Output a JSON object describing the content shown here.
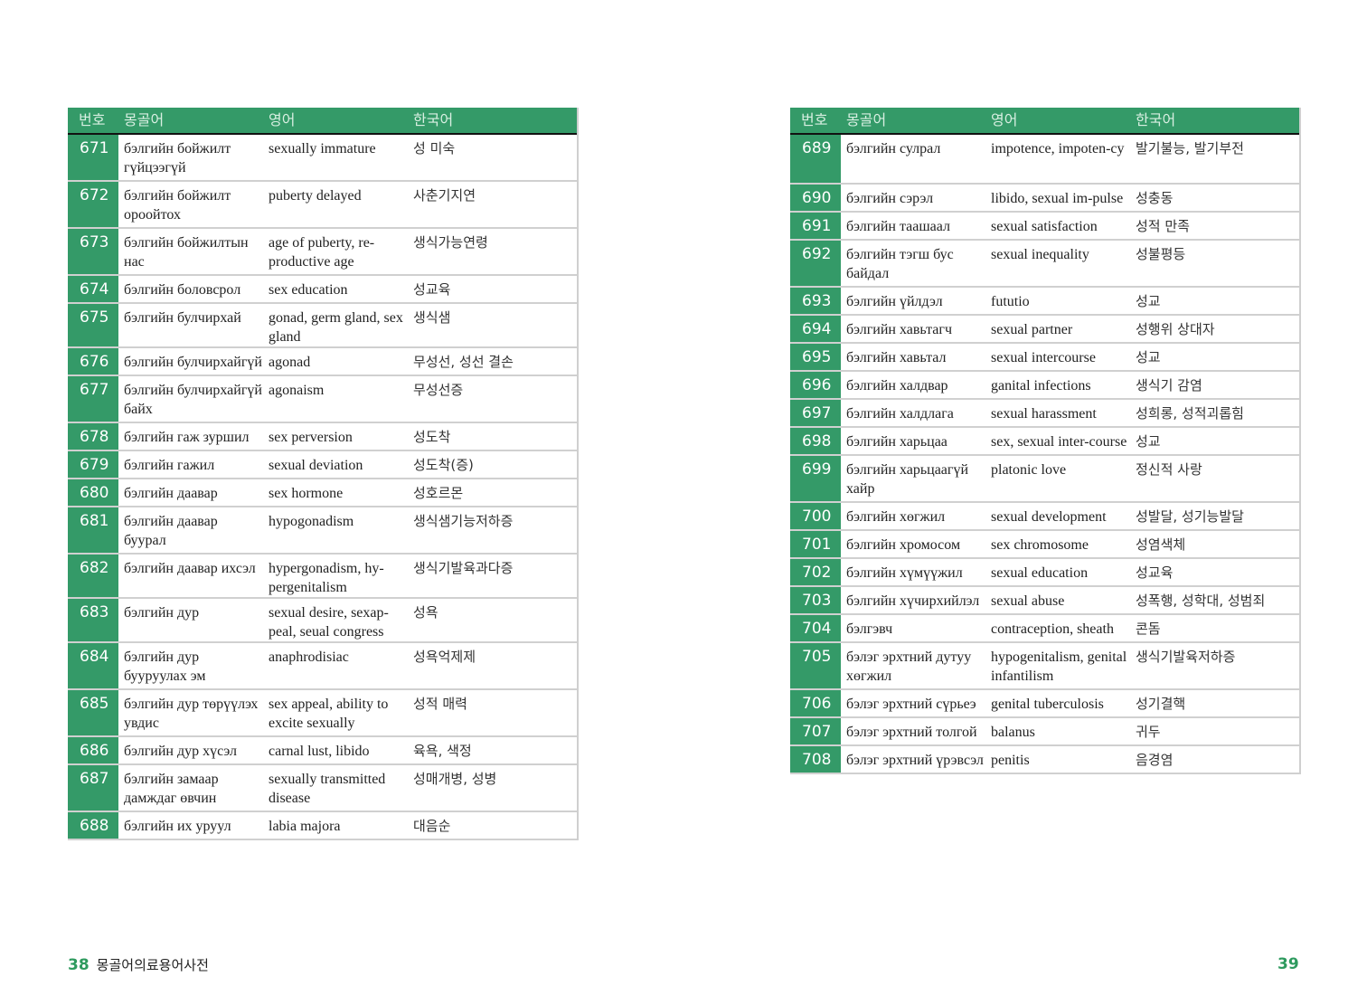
{
  "header": {
    "num": "번호",
    "mongolian": "몽골어",
    "english": "영어",
    "korean": "한국어"
  },
  "colors": {
    "accent": "#349a68",
    "page_number": "#2e9a5e"
  },
  "left_page": {
    "page_number": "38",
    "book_title": "몽골어의료용어사전",
    "rows": [
      {
        "num": "671",
        "mn": "бэлгийн бойжилт гүйцээгүй",
        "en": "sexually immature",
        "ko": "성 미숙"
      },
      {
        "num": "672",
        "mn": "бэлгийн бойжилт ороойтох",
        "en": "puberty delayed",
        "ko": "사춘기지연"
      },
      {
        "num": "673",
        "mn": "бэлгийн бойжилтын нас",
        "en": "age of puberty, re-productive age",
        "ko": "생식가능연령"
      },
      {
        "num": "674",
        "mn": "бэлгийн боловсрол",
        "en": "sex education",
        "ko": "성교육"
      },
      {
        "num": "675",
        "mn": "бэлгийн булчирхай",
        "en": "gonad, germ gland, sex gland",
        "ko": "생식샘"
      },
      {
        "num": "676",
        "mn": "бэлгийн булчирхайгүй",
        "en": "agonad",
        "ko": "무성선, 성선 결손"
      },
      {
        "num": "677",
        "mn": "бэлгийн булчирхайгүй байх",
        "en": "agonaism",
        "ko": "무성선증"
      },
      {
        "num": "678",
        "mn": "бэлгийн гаж зуршил",
        "en": "sex perversion",
        "ko": "성도착"
      },
      {
        "num": "679",
        "mn": "бэлгийн гажил",
        "en": "sexual deviation",
        "ko": "성도착(증)"
      },
      {
        "num": "680",
        "mn": "бэлгийн даавар",
        "en": "sex hormone",
        "ko": "성호르몬"
      },
      {
        "num": "681",
        "mn": "бэлгийн даавар буурал",
        "en": "hypogonadism",
        "ko": "생식샘기능저하증"
      },
      {
        "num": "682",
        "mn": "бэлгийн даавар ихсэл",
        "en": "hypergonadism, hy-pergenitalism",
        "ko": "생식기발육과다증"
      },
      {
        "num": "683",
        "mn": "бэлгийн дур",
        "en": "sexual desire, sexap-peal, seual congress",
        "ko": "성욕"
      },
      {
        "num": "684",
        "mn": "бэлгийн дур бууруулах эм",
        "en": "anaphrodisiac",
        "ko": "성욕억제제"
      },
      {
        "num": "685",
        "mn": "бэлгийн дур төрүүлэх увдис",
        "en": "sex appeal, ability to excite sexually",
        "ko": "성적 매력"
      },
      {
        "num": "686",
        "mn": "бэлгийн дур хүсэл",
        "en": "carnal lust, libido",
        "ko": "육욕, 색정"
      },
      {
        "num": "687",
        "mn": "бэлгийн замаар дамждаг өвчин",
        "en": "sexually transmitted disease",
        "ko": "성매개병, 성병"
      },
      {
        "num": "688",
        "mn": "бэлгийн их уруул",
        "en": "labia majora",
        "ko": "대음순"
      }
    ]
  },
  "right_page": {
    "page_number": "39",
    "rows": [
      {
        "num": "689",
        "mn": "бэлгийн сулрал",
        "en": "impotence, impoten-cy",
        "ko": "발기불능, 발기부전"
      },
      {
        "num": "690",
        "mn": "бэлгийн сэрэл",
        "en": "libido, sexual im-pulse",
        "ko": "성충동"
      },
      {
        "num": "691",
        "mn": "бэлгийн таашаал",
        "en": "sexual satisfaction",
        "ko": "성적 만족"
      },
      {
        "num": "692",
        "mn": "бэлгийн тэгш бус байдал",
        "en": "sexual inequality",
        "ko": "성불평등"
      },
      {
        "num": "693",
        "mn": "бэлгийн үйлдэл",
        "en": "fututio",
        "ko": "성교"
      },
      {
        "num": "694",
        "mn": "бэлгийн хавьтагч",
        "en": "sexual partner",
        "ko": "성행위 상대자"
      },
      {
        "num": "695",
        "mn": "бэлгийн хавьтал",
        "en": "sexual intercourse",
        "ko": "성교"
      },
      {
        "num": "696",
        "mn": "бэлгийн халдвар",
        "en": "ganital infections",
        "ko": "생식기 감염"
      },
      {
        "num": "697",
        "mn": "бэлгийн халдлага",
        "en": "sexual harassment",
        "ko": "성희롱, 성적괴롭힘"
      },
      {
        "num": "698",
        "mn": "бэлгийн харьцаа",
        "en": "sex, sexual inter-course",
        "ko": "성교"
      },
      {
        "num": "699",
        "mn": "бэлгийн харьцаагүй хайр",
        "en": "platonic love",
        "ko": "정신적 사랑"
      },
      {
        "num": "700",
        "mn": "бэлгийн хөгжил",
        "en": "sexual development",
        "ko": "성발달, 성기능발달"
      },
      {
        "num": "701",
        "mn": "бэлгийн хромосом",
        "en": "sex chromosome",
        "ko": "성염색체"
      },
      {
        "num": "702",
        "mn": "бэлгийн хүмүүжил",
        "en": "sexual education",
        "ko": "성교육"
      },
      {
        "num": "703",
        "mn": "бэлгийн хүчирхийлэл",
        "en": "sexual abuse",
        "ko": "성폭행, 성학대, 성범죄"
      },
      {
        "num": "704",
        "mn": "бэлгэвч",
        "en": "contraception, sheath",
        "ko": "콘돔"
      },
      {
        "num": "705",
        "mn": "бэлэг эрхтний дутуу хөгжил",
        "en": "hypogenitalism, genital infantilism",
        "ko": "생식기발육저하증"
      },
      {
        "num": "706",
        "mn": "бэлэг эрхтний сүрьеэ",
        "en": "genital tuberculosis",
        "ko": "성기결핵"
      },
      {
        "num": "707",
        "mn": "бэлэг эрхтний толгой",
        "en": "balanus",
        "ko": "귀두"
      },
      {
        "num": "708",
        "mn": "бэлэг эрхтний үрэвсэл",
        "en": "penitis",
        "ko": "음경염"
      }
    ]
  }
}
